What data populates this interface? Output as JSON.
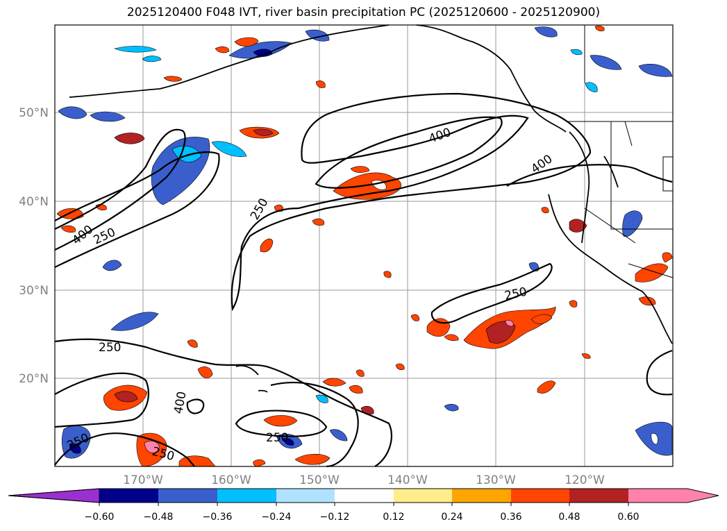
{
  "title": "2025120400 F048 IVT, river basin precipitation PC (2025120600 - 2025120900)",
  "map": {
    "lat_labels": [
      "50°N",
      "40°N",
      "30°N",
      "20°N"
    ],
    "lon_labels": [
      "170°W",
      "160°W",
      "150°W",
      "140°W",
      "130°W",
      "120°W"
    ],
    "ivt_contours": [
      "250",
      "400"
    ],
    "contour_labels": [
      "400",
      "250",
      "250",
      "400",
      "400",
      "250",
      "250",
      "400",
      "250",
      "250",
      "250"
    ]
  },
  "colorbar": {
    "ticks": [
      "−0.60",
      "−0.48",
      "−0.36",
      "−0.24",
      "−0.12",
      "0.12",
      "0.24",
      "0.36",
      "0.48",
      "0.60"
    ],
    "colors": [
      "#9b30d0",
      "#00008b",
      "#3a5fcd",
      "#00bfff",
      "#b0e2ff",
      "#ffffff",
      "#ffec8b",
      "#ffa500",
      "#ff4500",
      "#b22222",
      "#ff82ab"
    ]
  }
}
